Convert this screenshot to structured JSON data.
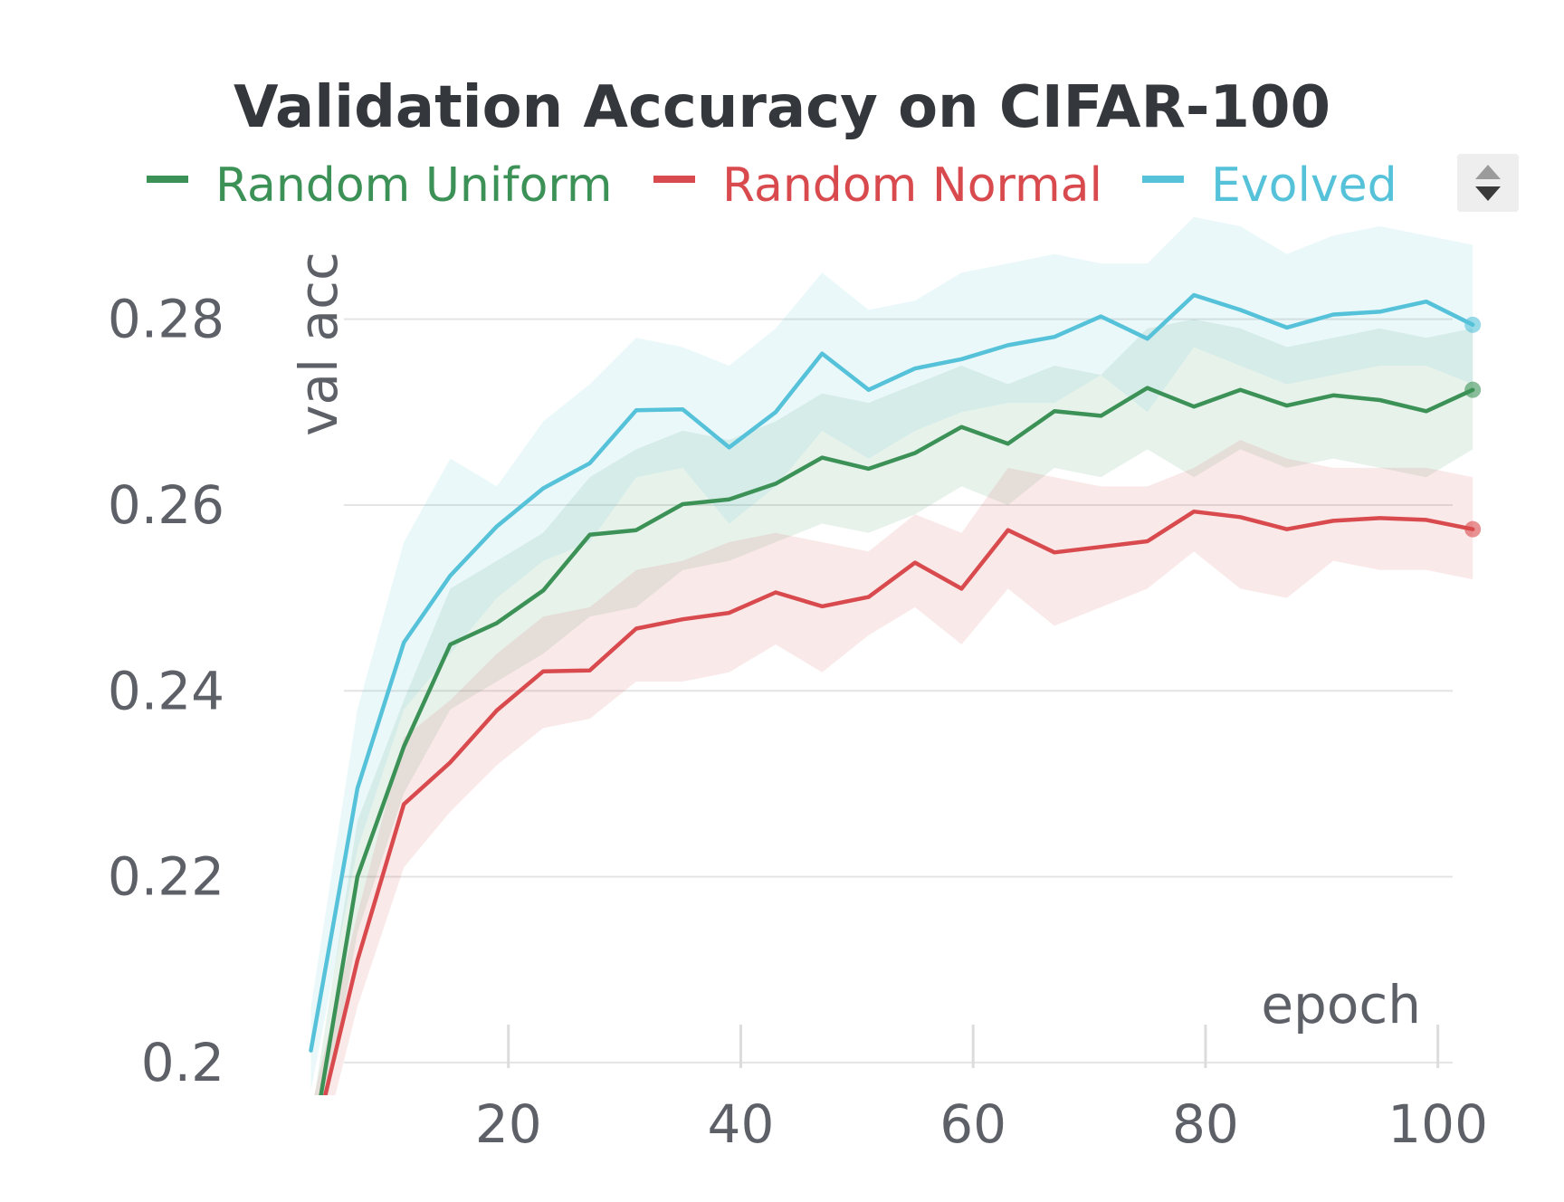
{
  "chart_data": {
    "type": "line",
    "title": "Validation Accuracy on CIFAR-100",
    "xlabel": "epoch",
    "ylabel": "val acc",
    "xlim": [
      0,
      104
    ],
    "ylim": [
      0.196,
      0.29
    ],
    "x_ticks": [
      20,
      40,
      60,
      80,
      100
    ],
    "y_ticks": [
      0.2,
      0.22,
      0.24,
      0.26,
      0.28
    ],
    "y_tick_labels": [
      "0.2",
      "0.22",
      "0.24",
      "0.26",
      "0.28"
    ],
    "grid": true,
    "legend": "top",
    "x": [
      3,
      7,
      11,
      15,
      19,
      23,
      27,
      31,
      35,
      39,
      43,
      47,
      51,
      55,
      59,
      63,
      67,
      71,
      75,
      79,
      83,
      87,
      91,
      95,
      99,
      103
    ],
    "series": [
      {
        "name": "Random Uniform",
        "color": "#3c9157",
        "values": [
          0.19,
          0.22,
          0.234,
          0.245,
          0.2473,
          0.2508,
          0.2568,
          0.2573,
          0.2601,
          0.2606,
          0.2623,
          0.2651,
          0.2639,
          0.2656,
          0.2684,
          0.2666,
          0.2701,
          0.2696,
          0.2726,
          0.2706,
          0.2724,
          0.2707,
          0.2718,
          0.2713,
          0.2701,
          0.2724
        ],
        "lower": [
          0.186,
          0.214,
          0.229,
          0.238,
          0.241,
          0.244,
          0.248,
          0.249,
          0.253,
          0.254,
          0.256,
          0.258,
          0.257,
          0.259,
          0.262,
          0.26,
          0.264,
          0.263,
          0.266,
          0.263,
          0.266,
          0.264,
          0.265,
          0.264,
          0.263,
          0.266
        ],
        "upper": [
          0.194,
          0.226,
          0.239,
          0.251,
          0.254,
          0.257,
          0.263,
          0.266,
          0.268,
          0.267,
          0.269,
          0.272,
          0.271,
          0.273,
          0.275,
          0.273,
          0.275,
          0.274,
          0.279,
          0.28,
          0.279,
          0.277,
          0.278,
          0.279,
          0.278,
          0.279
        ]
      },
      {
        "name": "Random Normal",
        "color": "#d84a4d",
        "values": [
          0.19,
          0.211,
          0.2278,
          0.2323,
          0.2379,
          0.2421,
          0.2422,
          0.2467,
          0.2477,
          0.2484,
          0.2506,
          0.2491,
          0.2501,
          0.2538,
          0.251,
          0.2573,
          0.2549,
          0.2555,
          0.2561,
          0.2593,
          0.2587,
          0.2574,
          0.2583,
          0.2586,
          0.2584,
          0.2574
        ],
        "lower": [
          0.186,
          0.206,
          0.221,
          0.227,
          0.232,
          0.236,
          0.237,
          0.241,
          0.241,
          0.242,
          0.245,
          0.242,
          0.246,
          0.249,
          0.245,
          0.251,
          0.247,
          0.249,
          0.251,
          0.255,
          0.251,
          0.25,
          0.254,
          0.253,
          0.253,
          0.252
        ],
        "upper": [
          0.195,
          0.216,
          0.235,
          0.239,
          0.244,
          0.248,
          0.249,
          0.253,
          0.254,
          0.256,
          0.257,
          0.256,
          0.255,
          0.259,
          0.257,
          0.264,
          0.263,
          0.262,
          0.262,
          0.264,
          0.267,
          0.265,
          0.264,
          0.264,
          0.264,
          0.263
        ]
      },
      {
        "name": "Evolved",
        "color": "#55c2d9",
        "values": [
          0.2013,
          0.2295,
          0.2452,
          0.2524,
          0.2577,
          0.2618,
          0.2645,
          0.2702,
          0.2703,
          0.2662,
          0.27,
          0.2763,
          0.2724,
          0.2747,
          0.2757,
          0.2772,
          0.2781,
          0.2803,
          0.2779,
          0.2826,
          0.281,
          0.2791,
          0.2805,
          0.2808,
          0.2819,
          0.2794
        ],
        "lower": [
          0.197,
          0.223,
          0.238,
          0.244,
          0.25,
          0.254,
          0.256,
          0.263,
          0.264,
          0.258,
          0.262,
          0.268,
          0.265,
          0.268,
          0.27,
          0.271,
          0.271,
          0.274,
          0.27,
          0.277,
          0.275,
          0.273,
          0.274,
          0.275,
          0.275,
          0.273
        ],
        "upper": [
          0.206,
          0.238,
          0.256,
          0.265,
          0.262,
          0.269,
          0.273,
          0.278,
          0.277,
          0.275,
          0.279,
          0.285,
          0.281,
          0.282,
          0.285,
          0.286,
          0.287,
          0.286,
          0.286,
          0.291,
          0.29,
          0.287,
          0.289,
          0.29,
          0.289,
          0.288
        ]
      }
    ]
  }
}
